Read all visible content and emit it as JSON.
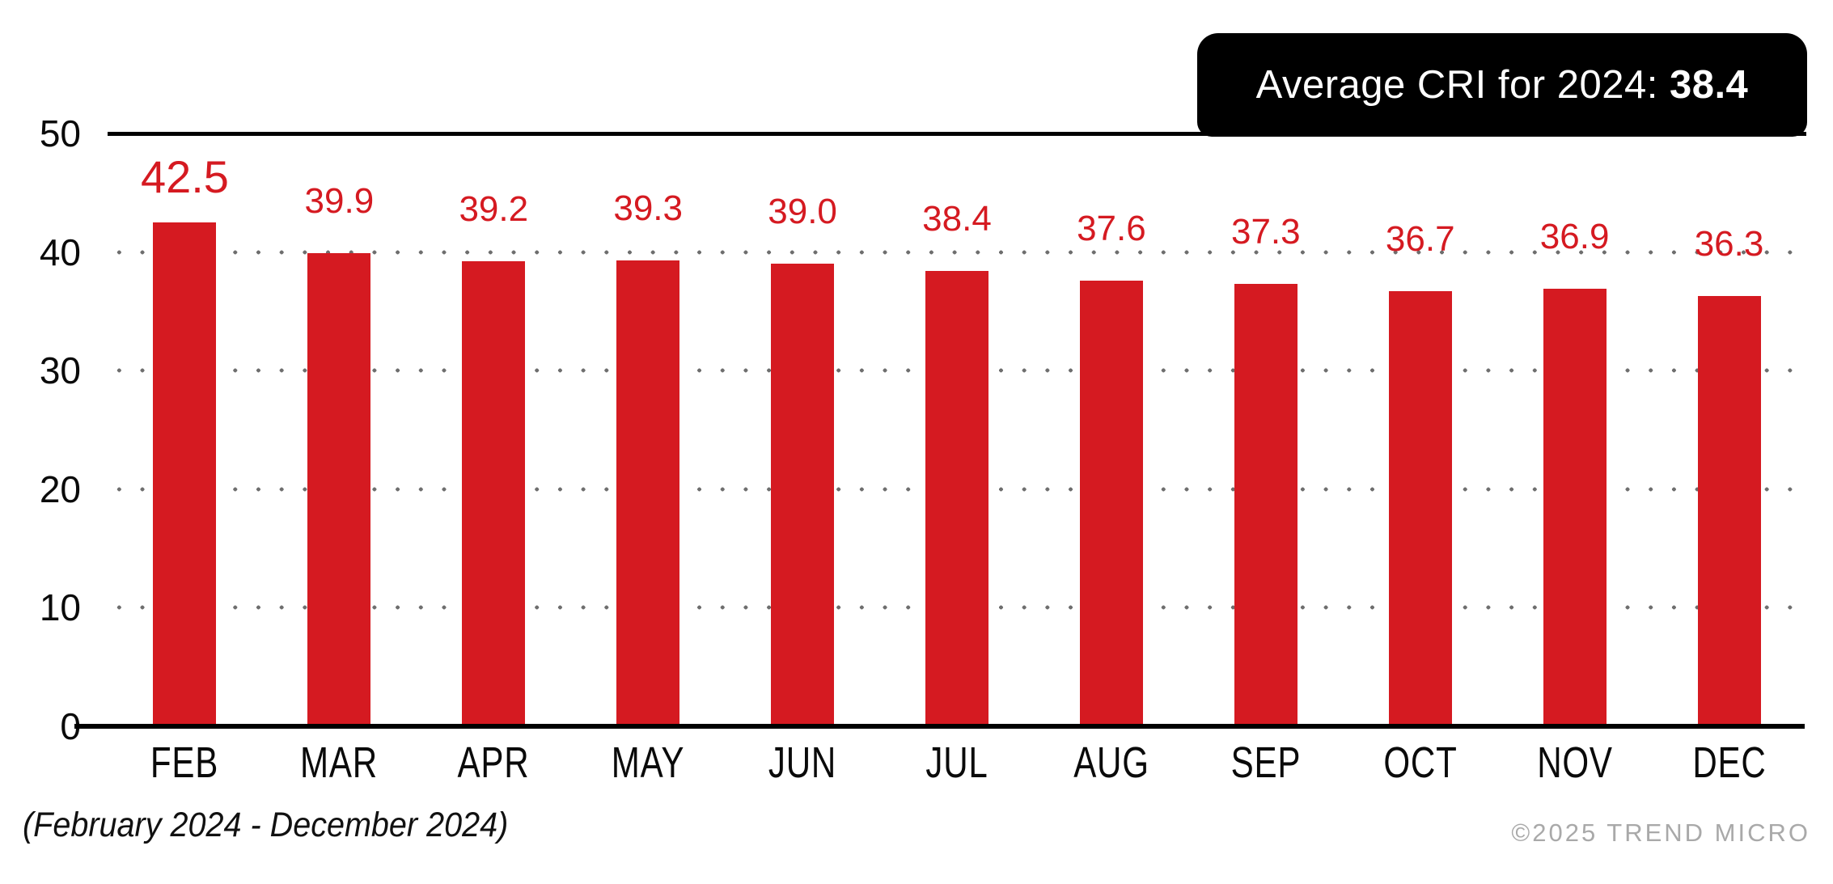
{
  "badge": {
    "label_prefix": "Average CRI for 2024: ",
    "value": "38.4"
  },
  "chart_data": {
    "type": "bar",
    "title": "Average CRI for 2024: 38.4",
    "categories": [
      "FEB",
      "MAR",
      "APR",
      "MAY",
      "JUN",
      "JUL",
      "AUG",
      "SEP",
      "OCT",
      "NOV",
      "DEC"
    ],
    "values": [
      42.5,
      39.9,
      39.2,
      39.3,
      39.0,
      38.4,
      37.6,
      37.3,
      36.7,
      36.9,
      36.3
    ],
    "value_labels": [
      "42.5",
      "39.9",
      "39.2",
      "39.3",
      "39.0",
      "38.4",
      "37.6",
      "37.3",
      "36.7",
      "36.9",
      "36.3"
    ],
    "highlight_category": "FEB",
    "xlabel": "",
    "ylabel": "",
    "ylim": [
      0,
      50
    ],
    "yticks": [
      0,
      10,
      20,
      30,
      40,
      50
    ],
    "grid": "horizontal dotted lines at 10, 20, 30, 40",
    "legend": "none"
  },
  "footer": {
    "note": "(February 2024 - December 2024)",
    "copyright": "©2025 TREND MICRO"
  },
  "colors": {
    "bar": "#d51a21",
    "value_label": "#d51a21",
    "axis": "#000000",
    "grid_dot": "#6e6e6e",
    "badge_bg": "#000000",
    "badge_text": "#ffffff",
    "copyright": "#a9a9a9",
    "background": "#ffffff"
  }
}
